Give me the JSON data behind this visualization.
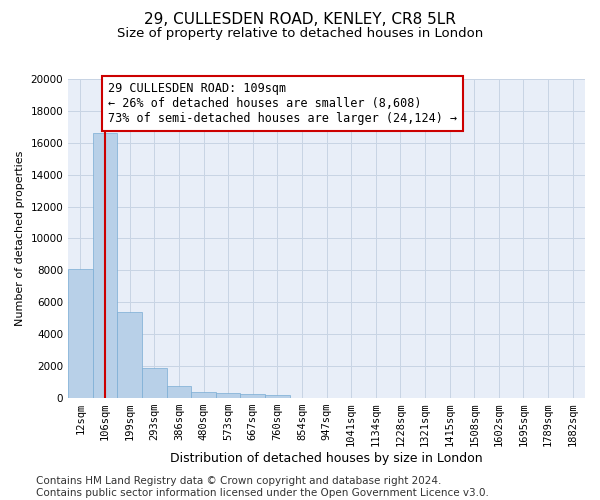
{
  "title": "29, CULLESDEN ROAD, KENLEY, CR8 5LR",
  "subtitle": "Size of property relative to detached houses in London",
  "xlabel": "Distribution of detached houses by size in London",
  "ylabel": "Number of detached properties",
  "categories": [
    "12sqm",
    "106sqm",
    "199sqm",
    "293sqm",
    "386sqm",
    "480sqm",
    "573sqm",
    "667sqm",
    "760sqm",
    "854sqm",
    "947sqm",
    "1041sqm",
    "1134sqm",
    "1228sqm",
    "1321sqm",
    "1415sqm",
    "1508sqm",
    "1602sqm",
    "1695sqm",
    "1789sqm",
    "1882sqm"
  ],
  "values": [
    8100,
    16600,
    5400,
    1850,
    750,
    380,
    280,
    220,
    200,
    0,
    0,
    0,
    0,
    0,
    0,
    0,
    0,
    0,
    0,
    0,
    0
  ],
  "bar_color": "#b8d0e8",
  "bar_edge_color": "#7aadd4",
  "vline_x": 1,
  "vline_color": "#cc0000",
  "annotation_text": "29 CULLESDEN ROAD: 109sqm\n← 26% of detached houses are smaller (8,608)\n73% of semi-detached houses are larger (24,124) →",
  "annotation_box_color": "#cc0000",
  "ylim": [
    0,
    20000
  ],
  "yticks": [
    0,
    2000,
    4000,
    6000,
    8000,
    10000,
    12000,
    14000,
    16000,
    18000,
    20000
  ],
  "grid_color": "#c8d4e4",
  "bg_color": "#e8eef8",
  "footer_text": "Contains HM Land Registry data © Crown copyright and database right 2024.\nContains public sector information licensed under the Open Government Licence v3.0.",
  "title_fontsize": 11,
  "subtitle_fontsize": 9.5,
  "annotation_fontsize": 8.5,
  "ylabel_fontsize": 8,
  "xlabel_fontsize": 9,
  "footer_fontsize": 7.5,
  "tick_fontsize": 7.5
}
